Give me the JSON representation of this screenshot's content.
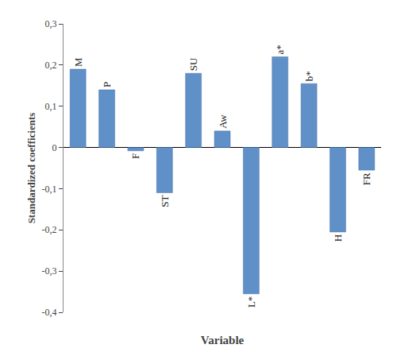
{
  "chart_data": {
    "type": "bar",
    "categories": [
      "M",
      "P",
      "F",
      "ST",
      "SU",
      "Aw",
      "L*",
      "a*",
      "b*",
      "H",
      "FR"
    ],
    "values": [
      0.19,
      0.14,
      -0.008,
      -0.11,
      0.18,
      0.04,
      -0.355,
      0.22,
      0.155,
      -0.205,
      -0.055
    ],
    "color": "#6090C8",
    "xlabel": "Variable",
    "ylabel": "Standardized coefficients",
    "ylim": [
      -0.4,
      0.3
    ],
    "yticks": [
      {
        "value": -0.4,
        "label": "-0,4"
      },
      {
        "value": -0.3,
        "label": "-0,3"
      },
      {
        "value": -0.2,
        "label": "-0,2"
      },
      {
        "value": -0.1,
        "label": "-0,1"
      },
      0,
      {
        "value": 0.1,
        "label": "0,1"
      },
      {
        "value": 0.2,
        "label": "0,2"
      },
      {
        "value": 0.3,
        "label": "0,3"
      }
    ],
    "grid": false,
    "tick_labels": "y"
  }
}
